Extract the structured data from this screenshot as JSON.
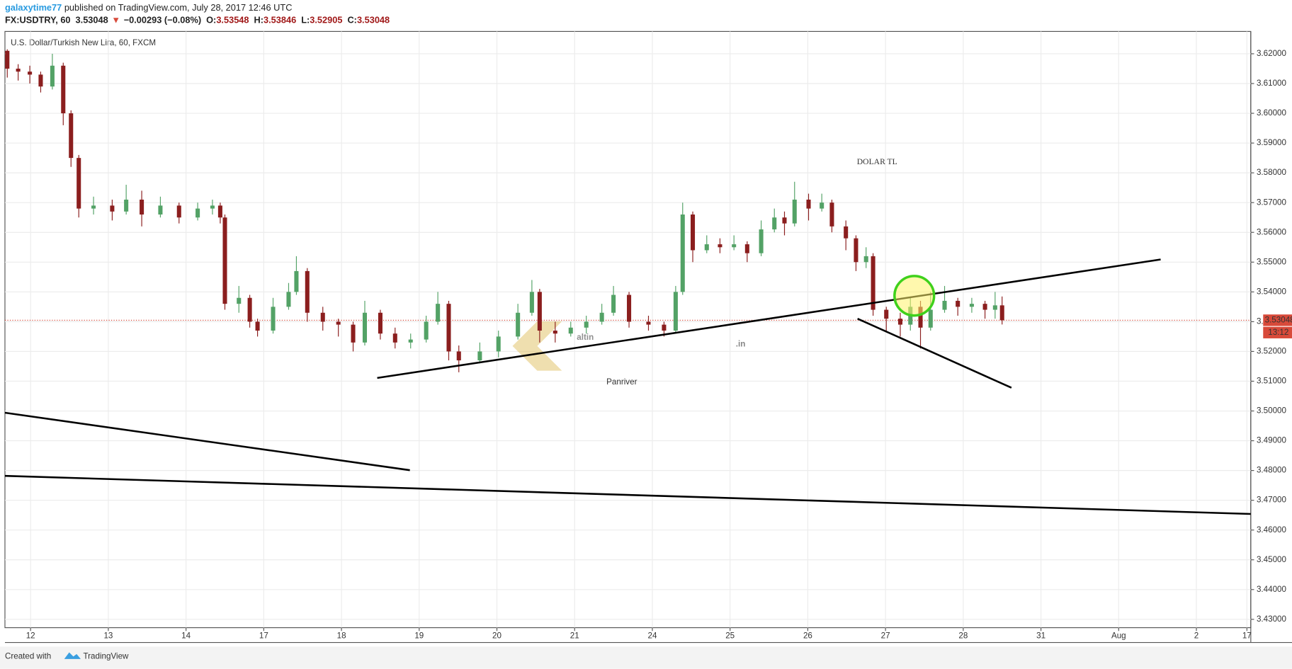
{
  "header": {
    "author": "galaxytime77",
    "published": "published on TradingView.com, July 28, 2017 12:46 UTC",
    "symbol": "FX:USDTRY, 60",
    "direction": "▼",
    "change": "−0.00293 (−0.08%)",
    "ohlc_labels": [
      "O:",
      "H:",
      "L:",
      "C:"
    ]
  },
  "footer": {
    "created": "Created with",
    "brand": "TradingView"
  },
  "chart_data": {
    "type": "candlestick",
    "title": "U.S. Dollar/Turkish New Lira, 60, FXCM",
    "x": [
      -0.3,
      -0.16,
      -0.01,
      0.13,
      0.28,
      0.42,
      0.52,
      0.62,
      0.81,
      1.05,
      1.23,
      1.43,
      1.67,
      1.91,
      2.15,
      2.34,
      2.44,
      2.5,
      2.68,
      2.82,
      2.92,
      3.12,
      3.32,
      3.42,
      3.56,
      3.76,
      3.96,
      4.15,
      4.3,
      4.5,
      4.69,
      4.89,
      5.09,
      5.24,
      5.38,
      5.51,
      5.78,
      6.02,
      6.27,
      6.45,
      6.55,
      6.75,
      6.95,
      7.15,
      7.35,
      7.5,
      7.7,
      7.95,
      8.15,
      8.3,
      8.39,
      8.52,
      8.7,
      8.87,
      9.05,
      9.22,
      9.4,
      9.57,
      9.7,
      9.83,
      10.01,
      10.18,
      10.31,
      10.49,
      10.62,
      10.75,
      10.84,
      11.01,
      11.19,
      11.32,
      11.45,
      11.58,
      11.76,
      11.93,
      12.11,
      12.28,
      12.41,
      12.5
    ],
    "open": [
      3.621,
      3.615,
      3.614,
      3.613,
      3.609,
      3.616,
      3.6,
      3.585,
      3.568,
      3.569,
      3.567,
      3.571,
      3.566,
      3.569,
      3.565,
      3.568,
      3.569,
      3.565,
      3.536,
      3.538,
      3.53,
      3.527,
      3.535,
      3.54,
      3.547,
      3.533,
      3.53,
      3.529,
      3.523,
      3.533,
      3.526,
      3.523,
      3.524,
      3.53,
      3.536,
      3.52,
      3.517,
      3.52,
      3.525,
      3.533,
      3.54,
      3.527,
      3.526,
      3.528,
      3.53,
      3.533,
      3.539,
      3.53,
      3.529,
      3.527,
      3.54,
      3.566,
      3.554,
      3.556,
      3.555,
      3.556,
      3.553,
      3.561,
      3.565,
      3.563,
      3.571,
      3.568,
      3.57,
      3.562,
      3.558,
      3.55,
      3.552,
      3.534,
      3.531,
      3.529,
      3.535,
      3.528,
      3.534,
      3.537,
      3.535,
      3.536,
      3.534,
      3.53548
    ],
    "high": [
      3.6215,
      3.6165,
      3.616,
      3.614,
      3.62,
      3.617,
      3.601,
      3.586,
      3.572,
      3.571,
      3.576,
      3.574,
      3.572,
      3.57,
      3.57,
      3.571,
      3.57,
      3.566,
      3.542,
      3.539,
      3.531,
      3.538,
      3.543,
      3.552,
      3.548,
      3.535,
      3.531,
      3.53,
      3.537,
      3.534,
      3.528,
      3.526,
      3.532,
      3.54,
      3.537,
      3.522,
      3.523,
      3.527,
      3.536,
      3.544,
      3.541,
      3.53,
      3.53,
      3.532,
      3.536,
      3.542,
      3.54,
      3.532,
      3.53,
      3.542,
      3.57,
      3.567,
      3.559,
      3.558,
      3.559,
      3.557,
      3.564,
      3.568,
      3.567,
      3.577,
      3.573,
      3.573,
      3.571,
      3.564,
      3.559,
      3.555,
      3.553,
      3.535,
      3.533,
      3.538,
      3.537,
      3.54,
      3.542,
      3.538,
      3.538,
      3.537,
      3.54,
      3.53846
    ],
    "low": [
      3.612,
      3.611,
      3.61,
      3.607,
      3.608,
      3.596,
      3.582,
      3.565,
      3.566,
      3.564,
      3.566,
      3.562,
      3.565,
      3.563,
      3.564,
      3.566,
      3.563,
      3.534,
      3.533,
      3.528,
      3.525,
      3.526,
      3.534,
      3.539,
      3.53,
      3.527,
      3.525,
      3.52,
      3.522,
      3.524,
      3.521,
      3.521,
      3.523,
      3.529,
      3.517,
      3.513,
      3.516,
      3.518,
      3.524,
      3.532,
      3.523,
      3.523,
      3.525,
      3.526,
      3.529,
      3.532,
      3.528,
      3.527,
      3.525,
      3.526,
      3.539,
      3.55,
      3.553,
      3.553,
      3.554,
      3.55,
      3.552,
      3.56,
      3.559,
      3.562,
      3.564,
      3.567,
      3.56,
      3.554,
      3.547,
      3.548,
      3.532,
      3.527,
      3.525,
      3.527,
      3.521,
      3.527,
      3.533,
      3.532,
      3.533,
      3.531,
      3.531,
      3.52905
    ],
    "close": [
      3.615,
      3.614,
      3.613,
      3.609,
      3.616,
      3.6,
      3.585,
      3.568,
      3.569,
      3.567,
      3.571,
      3.566,
      3.569,
      3.565,
      3.568,
      3.569,
      3.565,
      3.536,
      3.538,
      3.53,
      3.527,
      3.535,
      3.54,
      3.547,
      3.533,
      3.53,
      3.529,
      3.523,
      3.533,
      3.526,
      3.523,
      3.524,
      3.53,
      3.536,
      3.52,
      3.517,
      3.52,
      3.525,
      3.533,
      3.54,
      3.527,
      3.526,
      3.528,
      3.53,
      3.533,
      3.539,
      3.53,
      3.529,
      3.527,
      3.54,
      3.566,
      3.554,
      3.556,
      3.555,
      3.556,
      3.553,
      3.561,
      3.565,
      3.563,
      3.571,
      3.568,
      3.57,
      3.562,
      3.558,
      3.55,
      3.552,
      3.534,
      3.531,
      3.529,
      3.535,
      3.528,
      3.534,
      3.537,
      3.535,
      3.536,
      3.534,
      3.53548,
      3.53048
    ],
    "up_color": "#53a266",
    "down_color": "#8b1e1e",
    "last_price_color": "#d84a3a",
    "countdown": "13:12",
    "xlim": [
      -0.33,
      15.7
    ],
    "xticks": [
      {
        "value": 0,
        "label": "12"
      },
      {
        "value": 1,
        "label": "13"
      },
      {
        "value": 2,
        "label": "14"
      },
      {
        "value": 3,
        "label": "17"
      },
      {
        "value": 4,
        "label": "18"
      },
      {
        "value": 5,
        "label": "19"
      },
      {
        "value": 6,
        "label": "20"
      },
      {
        "value": 7,
        "label": "21"
      },
      {
        "value": 8,
        "label": "24"
      },
      {
        "value": 9,
        "label": "25"
      },
      {
        "value": 10,
        "label": "26"
      },
      {
        "value": 11,
        "label": "27"
      },
      {
        "value": 12,
        "label": "28"
      },
      {
        "value": 13,
        "label": "31"
      },
      {
        "value": 14,
        "label": "Aug"
      },
      {
        "value": 15,
        "label": "2"
      },
      {
        "value": 15.65,
        "label": "17"
      }
    ],
    "ylim": [
      3.4272,
      3.6275
    ],
    "yticks": [
      {
        "value": 3.43,
        "label": "3.43000"
      },
      {
        "value": 3.44,
        "label": "3.44000"
      },
      {
        "value": 3.45,
        "label": "3.45000"
      },
      {
        "value": 3.46,
        "label": "3.46000"
      },
      {
        "value": 3.47,
        "label": "3.47000"
      },
      {
        "value": 3.48,
        "label": "3.48000"
      },
      {
        "value": 3.49,
        "label": "3.49000"
      },
      {
        "value": 3.5,
        "label": "3.50000"
      },
      {
        "value": 3.51,
        "label": "3.51000"
      },
      {
        "value": 3.52,
        "label": "3.52000"
      },
      {
        "value": 3.53,
        "label": "3.53000"
      },
      {
        "value": 3.54,
        "label": "3.54000"
      },
      {
        "value": 3.55,
        "label": "3.55000"
      },
      {
        "value": 3.56,
        "label": "3.56000"
      },
      {
        "value": 3.57,
        "label": "3.57000"
      },
      {
        "value": 3.58,
        "label": "3.58000"
      },
      {
        "value": 3.59,
        "label": "3.59000"
      },
      {
        "value": 3.6,
        "label": "3.60000"
      },
      {
        "value": 3.61,
        "label": "3.61000"
      },
      {
        "value": 3.62,
        "label": "3.62000"
      }
    ],
    "grid": true,
    "trendlines": [
      {
        "x": [
          4.46,
          14.54
        ],
        "y": [
          3.5111,
          3.5509
        ]
      },
      {
        "x": [
          10.64,
          12.62
        ],
        "y": [
          3.531,
          3.5078
        ]
      },
      {
        "x": [
          -0.33,
          4.88
        ],
        "y": [
          3.4994,
          3.4801
        ]
      },
      {
        "x": [
          -0.33,
          15.7
        ],
        "y": [
          3.4782,
          3.4654
        ]
      }
    ],
    "highlight": {
      "x": 11.37,
      "y": 3.5387,
      "color": "#3fd11c"
    },
    "annotation": {
      "text": "DOLAR TL",
      "color": "#1f1fb0"
    },
    "watermark": {
      "logo": "altin",
      "suffix": ".in",
      "caption": "Panriver"
    }
  }
}
